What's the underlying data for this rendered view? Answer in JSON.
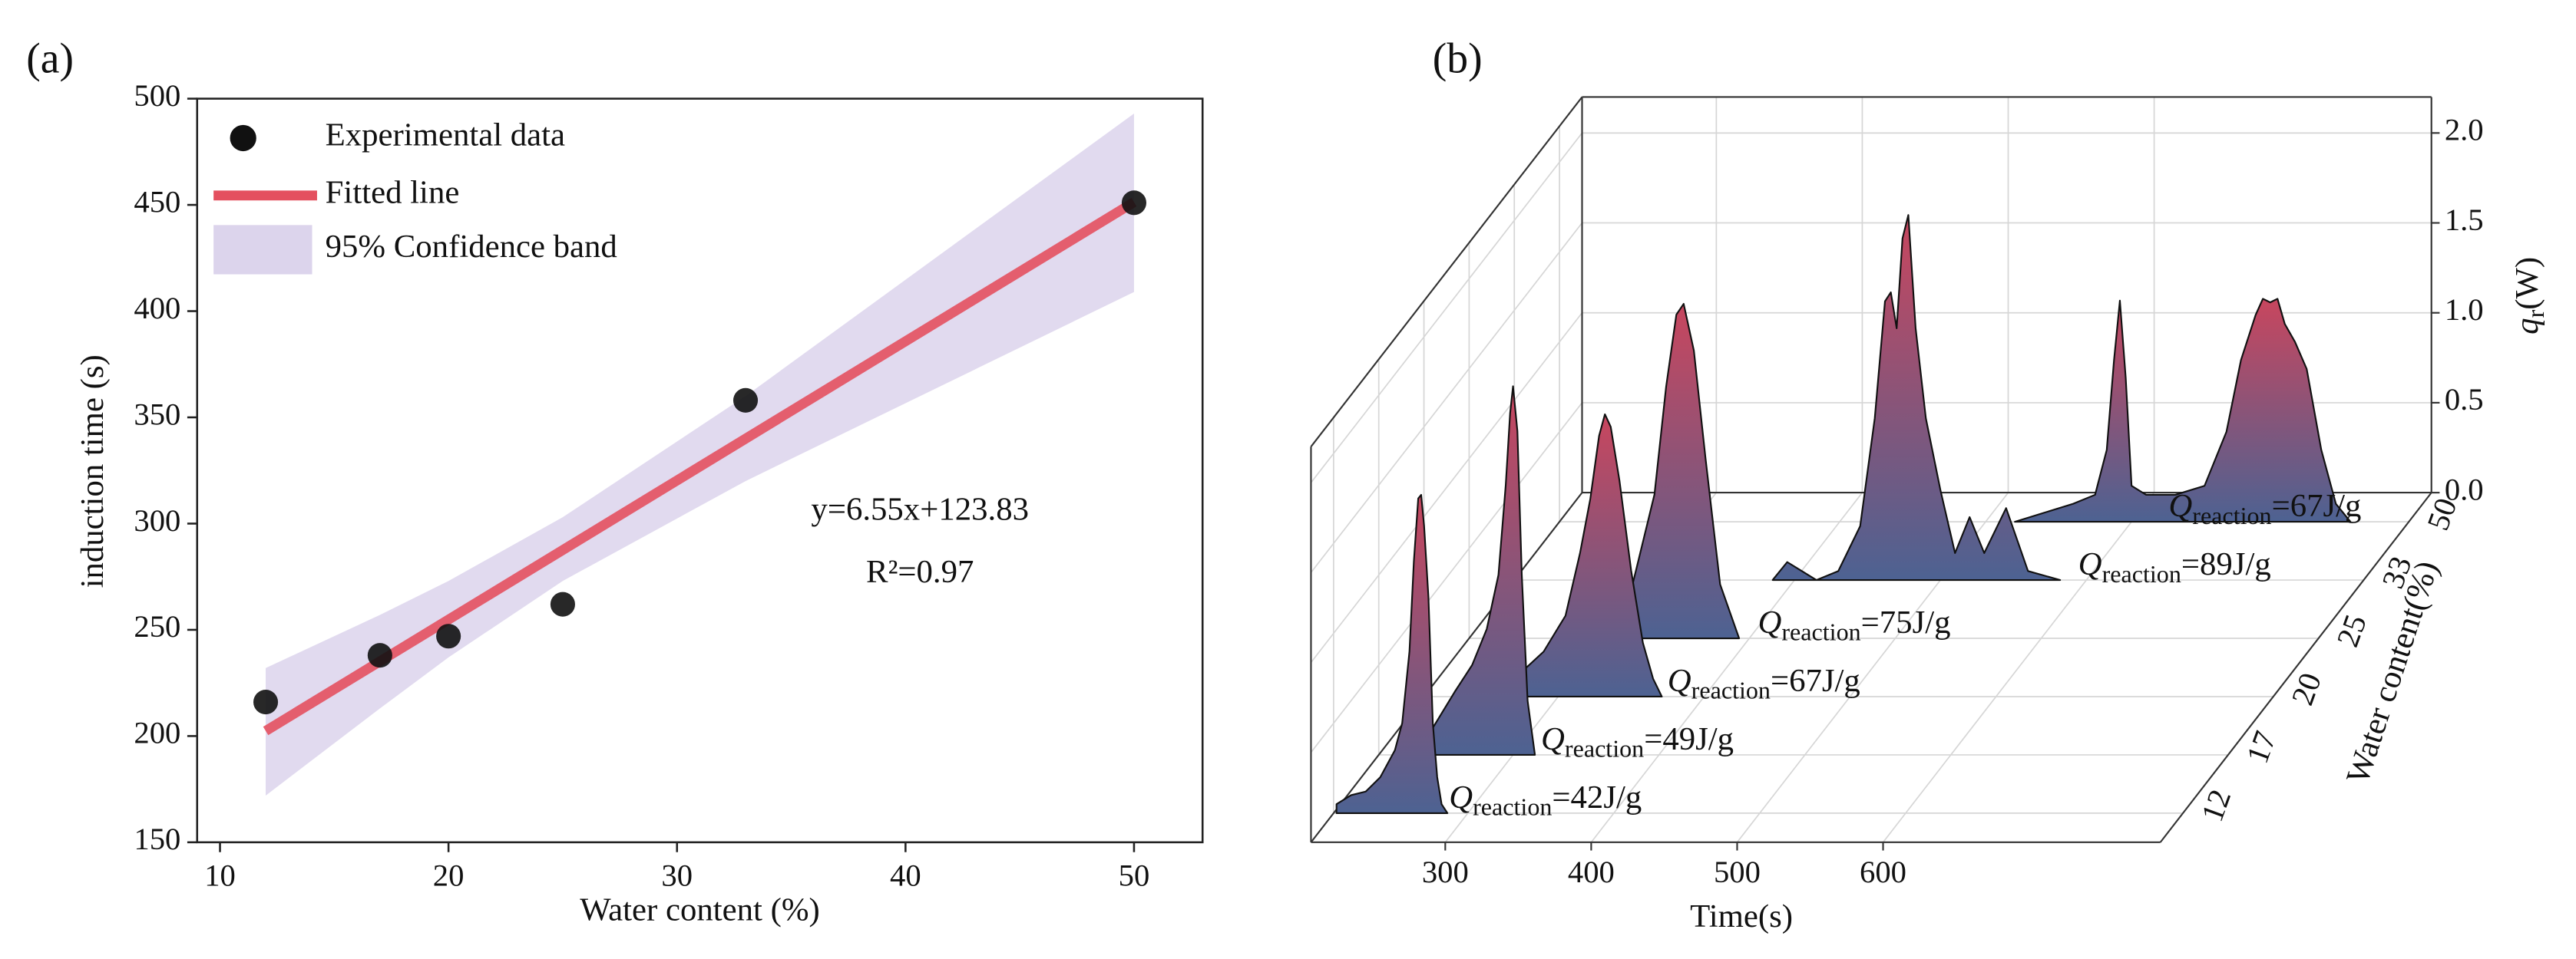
{
  "chart_data": [
    {
      "type": "scatter",
      "title": "(a)",
      "x_label": "Water content (%)",
      "y_label": "induction time (s)",
      "xlim": [
        9,
        53
      ],
      "ylim": [
        150,
        500
      ],
      "xticks": [
        10,
        20,
        30,
        40,
        50
      ],
      "yticks": [
        150,
        200,
        250,
        300,
        350,
        400,
        450,
        500
      ],
      "series": [
        {
          "name": "Experimental data",
          "type": "scatter",
          "color": "#111111",
          "x": [
            12,
            17,
            20,
            25,
            33,
            50
          ],
          "values": [
            216,
            238,
            247,
            262,
            358,
            451
          ]
        },
        {
          "name": "Fitted line",
          "type": "line",
          "color": "#e4505f",
          "x": [
            12,
            50
          ],
          "values": [
            202.4,
            451.3
          ]
        },
        {
          "name": "95% Confidence band",
          "type": "band",
          "color": "#dcd4ec",
          "x": [
            12,
            17,
            20,
            25,
            33,
            50
          ],
          "lower": [
            172,
            213,
            237,
            273,
            320,
            409
          ],
          "upper": [
            232,
            257,
            273,
            303,
            360,
            493
          ]
        }
      ],
      "annotations": [
        "y=6.55x+123.83",
        "R²=0.97"
      ]
    },
    {
      "type": "waterfall3d",
      "title": "(b)",
      "x_label": "Time(s)",
      "y_label": "Water content(%)",
      "z_label": {
        "symbol": "q",
        "sub": "r",
        "unit": "(W)"
      },
      "xlim": [
        208,
        790
      ],
      "xticks": [
        300,
        400,
        500,
        600
      ],
      "zlim": [
        0,
        2.2
      ],
      "zticks": [
        {
          "value": 0,
          "label": "0.0"
        },
        {
          "value": 0.5,
          "label": "0.5"
        },
        {
          "value": 1,
          "label": "1.0"
        },
        {
          "value": 1.5,
          "label": "1.5"
        },
        {
          "value": 2,
          "label": "2.0"
        }
      ],
      "categories": [
        "12",
        "17",
        "20",
        "25",
        "33",
        "50"
      ],
      "color_top": "#c8465e",
      "color_bottom": "#4d6292",
      "series": [
        {
          "x": [
            210,
            220,
            230,
            240,
            250,
            255,
            260,
            263,
            266,
            268,
            270,
            273,
            276,
            279,
            282,
            286
          ],
          "values": [
            0.05,
            0.1,
            0.12,
            0.2,
            0.35,
            0.5,
            0.9,
            1.4,
            1.75,
            1.77,
            1.6,
            1.2,
            0.5,
            0.2,
            0.05,
            0
          ],
          "label": {
            "symbol": "Q",
            "sub": "reaction",
            "text": "=42J/g"
          }
        },
        {
          "x": [
            232,
            245,
            260,
            272,
            282,
            290,
            295,
            298,
            300,
            303,
            306,
            310,
            315
          ],
          "values": [
            0,
            0.15,
            0.35,
            0.5,
            0.7,
            1.0,
            1.5,
            1.9,
            2.05,
            1.8,
            1.0,
            0.3,
            0
          ],
          "label": {
            "symbol": "Q",
            "sub": "reaction",
            "text": "=49J/g"
          }
        },
        {
          "x": [
            246,
            270,
            290,
            305,
            315,
            322,
            328,
            332,
            336,
            342,
            350,
            358,
            365,
            371
          ],
          "values": [
            0,
            0.1,
            0.25,
            0.45,
            0.8,
            1.1,
            1.45,
            1.57,
            1.5,
            1.2,
            0.7,
            0.3,
            0.1,
            0
          ],
          "label": {
            "symbol": "Q",
            "sub": "reaction",
            "text": "=67J/g"
          }
        },
        {
          "x": [
            276,
            300,
            320,
            335,
            343,
            350,
            355,
            362,
            370,
            380,
            393
          ],
          "values": [
            0,
            0.1,
            0.3,
            0.8,
            1.4,
            1.8,
            1.86,
            1.6,
            1.0,
            0.3,
            0
          ],
          "label": {
            "symbol": "Q",
            "sub": "reaction",
            "text": "=75J/g"
          }
        },
        {
          "x": [
            385,
            395,
            405,
            415,
            430,
            445,
            455,
            462,
            466,
            470,
            474,
            478,
            483,
            490,
            500,
            510,
            520,
            530,
            545,
            560,
            582
          ],
          "values": [
            0,
            0.1,
            0.05,
            0,
            0.05,
            0.3,
            0.9,
            1.55,
            1.6,
            1.4,
            1.9,
            2.03,
            1.4,
            0.9,
            0.5,
            0.15,
            0.35,
            0.15,
            0.4,
            0.05,
            0
          ],
          "label": {
            "symbol": "Q",
            "sub": "reaction",
            "text": "=89J/g"
          }
        },
        {
          "x": [
            520,
            540,
            560,
            575,
            583,
            588,
            592,
            596,
            600,
            610,
            630,
            650,
            665,
            675,
            685,
            690,
            695,
            700,
            705,
            712,
            720,
            730,
            740,
            750
          ],
          "values": [
            0,
            0.05,
            0.1,
            0.15,
            0.4,
            0.9,
            1.23,
            0.8,
            0.2,
            0.15,
            0.15,
            0.2,
            0.5,
            0.9,
            1.15,
            1.24,
            1.22,
            1.24,
            1.1,
            1.0,
            0.85,
            0.4,
            0.1,
            0
          ],
          "label": {
            "symbol": "Q",
            "sub": "reaction",
            "text": "=67J/g"
          }
        }
      ]
    }
  ]
}
